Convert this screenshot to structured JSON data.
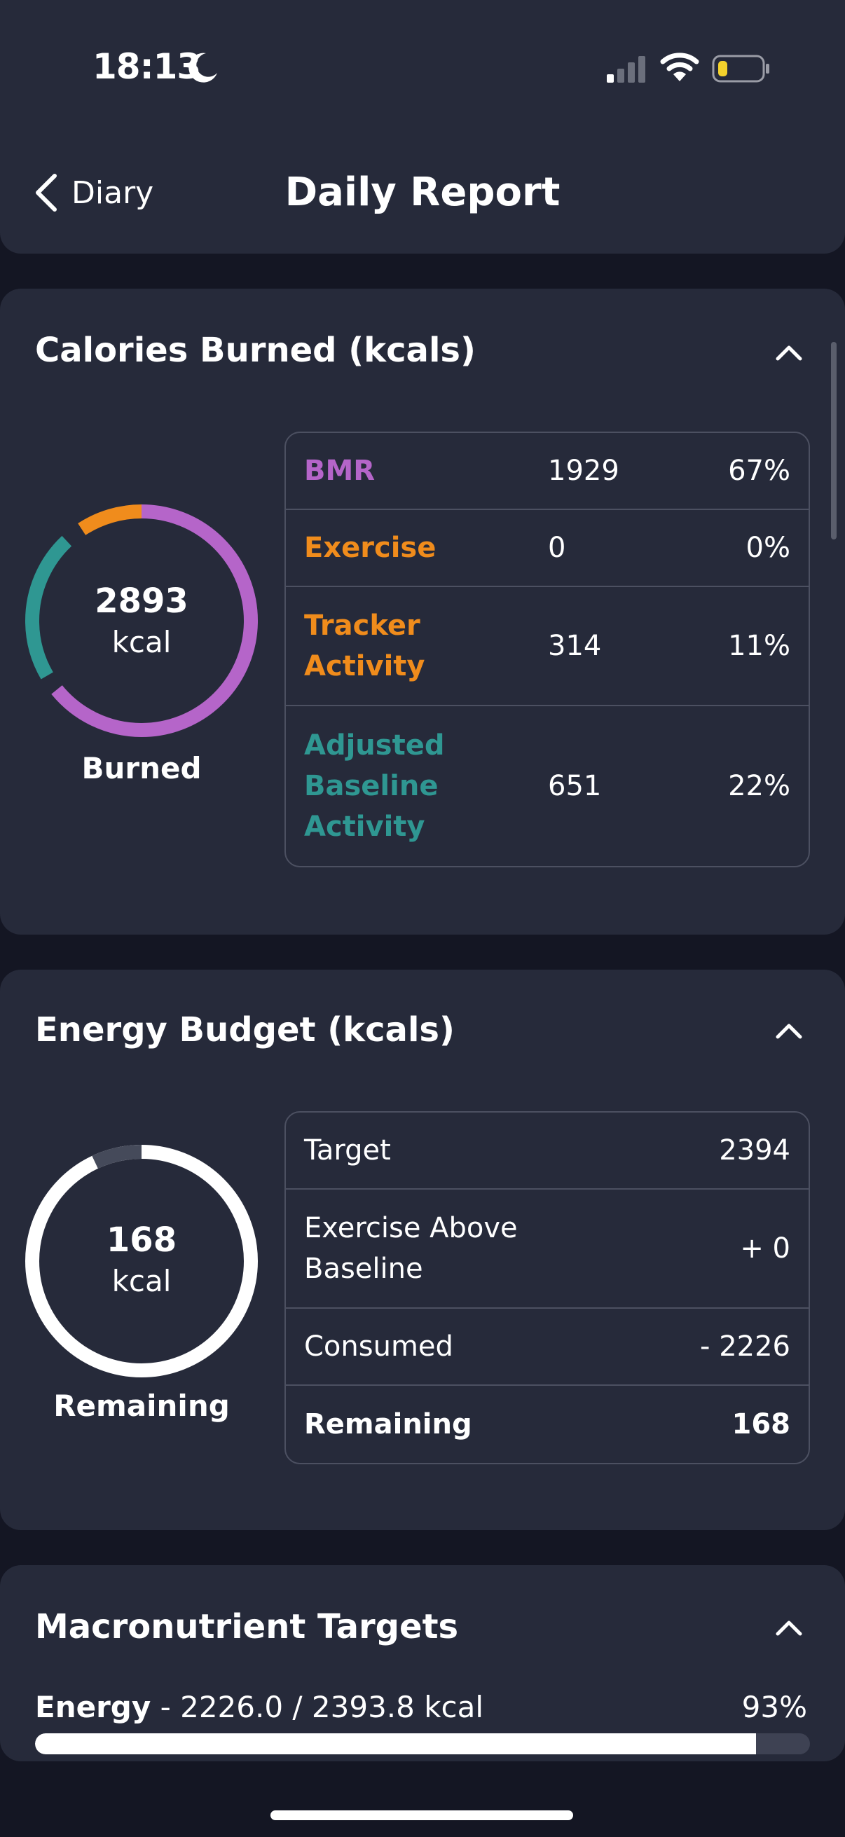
{
  "status_bar": {
    "time": "18:13"
  },
  "header": {
    "back_label": "Diary",
    "title": "Daily Report"
  },
  "colors": {
    "bmr": "#b565c9",
    "exercise": "#f08c1c",
    "tracker": "#f08c1c",
    "adjusted": "#2f9792",
    "card": "#262a3a",
    "background": "#141623"
  },
  "calories_burned": {
    "title": "Calories Burned (kcals)",
    "total": "2893",
    "unit": "kcal",
    "caption": "Burned",
    "rows": [
      {
        "label": "BMR",
        "value": "1929",
        "percent": "67%"
      },
      {
        "label": "Exercise",
        "value": "0",
        "percent": "0%"
      },
      {
        "label": "Tracker Activity",
        "value": "314",
        "percent": "11%"
      },
      {
        "label": "Adjusted Baseline Activity",
        "value": "651",
        "percent": "22%"
      }
    ]
  },
  "energy_budget": {
    "title": "Energy Budget (kcals)",
    "remaining": "168",
    "unit": "kcal",
    "caption": "Remaining",
    "remaining_fraction": 0.07,
    "rows": [
      {
        "label": "Target",
        "value": "2394"
      },
      {
        "label": "Exercise Above Baseline",
        "value": "+ 0"
      },
      {
        "label": "Consumed",
        "value": "- 2226"
      },
      {
        "label": "Remaining",
        "value": "168"
      }
    ]
  },
  "macronutrient_targets": {
    "title": "Macronutrient Targets",
    "energy_name": "Energy",
    "energy_detail": " - 2226.0 / 2393.8 kcal",
    "energy_percent": "93%",
    "energy_progress": 0.93
  }
}
